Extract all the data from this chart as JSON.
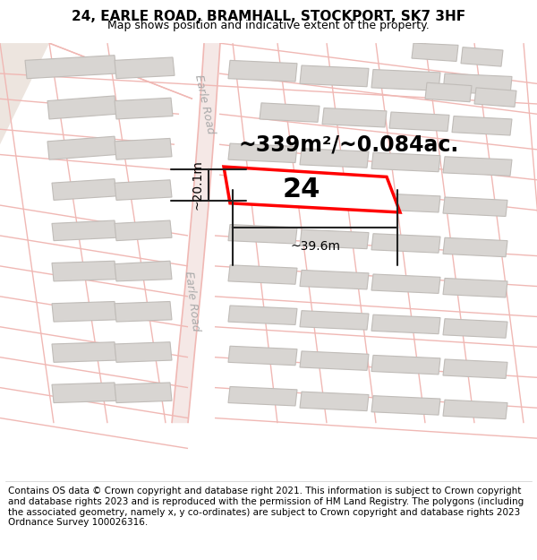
{
  "title": "24, EARLE ROAD, BRAMHALL, STOCKPORT, SK7 3HF",
  "subtitle": "Map shows position and indicative extent of the property.",
  "footer": "Contains OS data © Crown copyright and database right 2021. This information is subject to Crown copyright and database rights 2023 and is reproduced with the permission of HM Land Registry. The polygons (including the associated geometry, namely x, y co-ordinates) are subject to Crown copyright and database rights 2023 Ordnance Survey 100026316.",
  "area_text": "~339m²/~0.084ac.",
  "width_text": "~39.6m",
  "height_text": "~20.1m",
  "property_number": "24",
  "road_label_upper": "Earle Road",
  "road_label_lower": "Earle Road",
  "bg_color": "#ffffff",
  "map_bg": "#ffffff",
  "road_line_color": "#f0b8b4",
  "road_fill_color": "#f5e8e6",
  "building_fill": "#d8d5d2",
  "building_border": "#c0bcb8",
  "highlight_fill": "#ffffff",
  "highlight_border": "#ff0000",
  "dim_line_color": "#222222",
  "title_fontsize": 11,
  "subtitle_fontsize": 9,
  "footer_fontsize": 7.5,
  "area_fontsize": 17,
  "prop_num_fontsize": 22,
  "dim_fontsize": 10,
  "road_label_fontsize": 9,
  "road_label_color": "#aaaaaa"
}
